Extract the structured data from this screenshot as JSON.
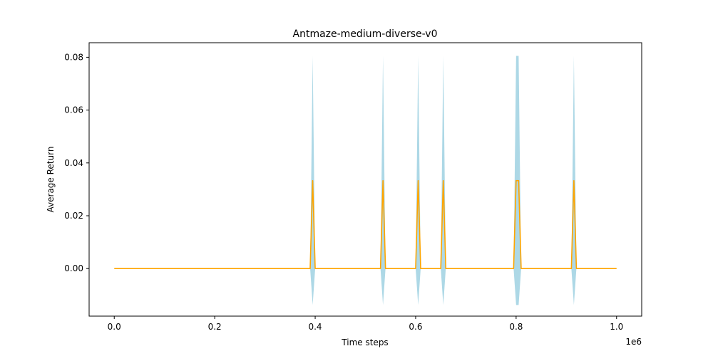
{
  "chart_data": {
    "type": "line",
    "title": "Antmaze-medium-diverse-v0",
    "xlabel": "Time steps",
    "ylabel": "Average Return",
    "x_offset_label": "1e6",
    "xlim": [
      -0.05,
      1.05
    ],
    "ylim": [
      -0.018,
      0.0855
    ],
    "x_ticks": [
      0.0,
      0.2,
      0.4,
      0.6,
      0.8,
      1.0
    ],
    "x_tick_labels": [
      "0.0",
      "0.2",
      "0.4",
      "0.6",
      "0.8",
      "1.0"
    ],
    "y_ticks": [
      0.0,
      0.02,
      0.04,
      0.06,
      0.08
    ],
    "y_tick_labels": [
      "0.00",
      "0.02",
      "0.04",
      "0.06",
      "0.08"
    ],
    "grid": false,
    "series": [
      {
        "name": "",
        "color": "#FFA500",
        "band_color": "#ADD8E6",
        "x": [
          0.0,
          0.39,
          0.395,
          0.4,
          0.53,
          0.535,
          0.54,
          0.6,
          0.605,
          0.61,
          0.65,
          0.655,
          0.66,
          0.795,
          0.8,
          0.805,
          0.81,
          0.91,
          0.915,
          0.92,
          1.0
        ],
        "mean": [
          0.0,
          0.0,
          0.0333,
          0.0,
          0.0,
          0.0333,
          0.0,
          0.0,
          0.0333,
          0.0,
          0.0,
          0.0333,
          0.0,
          0.0,
          0.0333,
          0.0333,
          0.0,
          0.0,
          0.0333,
          0.0,
          0.0
        ],
        "upper": [
          0.0,
          0.0,
          0.0805,
          0.0,
          0.0,
          0.0805,
          0.0,
          0.0,
          0.0805,
          0.0,
          0.0,
          0.0805,
          0.0,
          0.0,
          0.0805,
          0.0805,
          0.0,
          0.0,
          0.0805,
          0.0,
          0.0
        ],
        "lower": [
          0.0,
          0.0,
          -0.0138,
          0.0,
          0.0,
          -0.0138,
          0.0,
          0.0,
          -0.0138,
          0.0,
          0.0,
          -0.0138,
          0.0,
          0.0,
          -0.0138,
          -0.0138,
          0.0,
          0.0,
          -0.0138,
          0.0,
          0.0
        ]
      }
    ]
  }
}
